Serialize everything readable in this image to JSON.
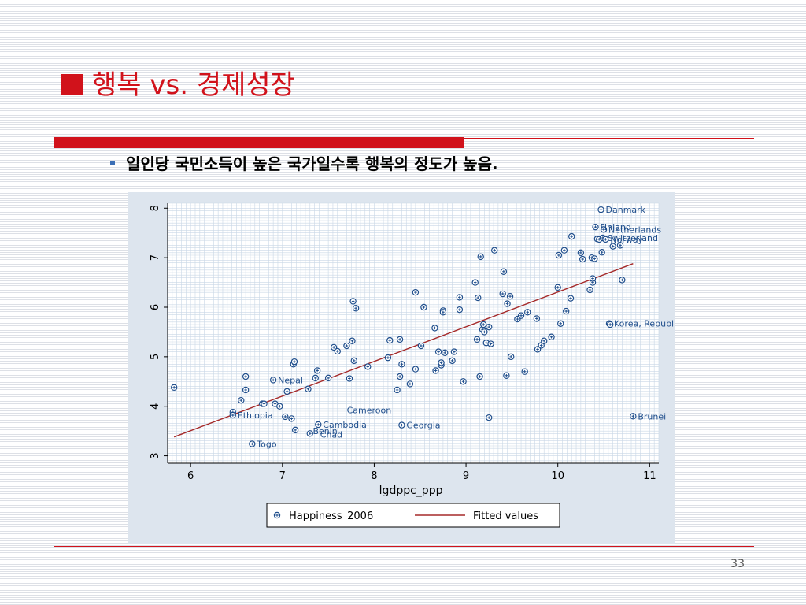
{
  "slide": {
    "title": "행복 vs. 경제성장",
    "bullet": "일인당 국민소득이 높은 국가일수록 행복의 정도가 높음.",
    "page_number": "33"
  },
  "colors": {
    "title": "#d1121b",
    "bullet_marker": "#3b6fb6",
    "marker": "#1f4e8c",
    "fitted_line": "#a52a2a",
    "panel_bg": "#dde5ee",
    "plot_bg": "#ffffff"
  },
  "chart_data": {
    "type": "scatter",
    "xlabel": "lgdppc_ppp",
    "ylabel": "",
    "xlim": [
      5.75,
      11.1
    ],
    "ylim": [
      2.85,
      8.1
    ],
    "x_ticks": [
      6,
      7,
      8,
      9,
      10,
      11
    ],
    "y_ticks": [
      3,
      4,
      5,
      6,
      7,
      8
    ],
    "grid": true,
    "legend_position": "bottom",
    "series": [
      {
        "name": "Happiness_2006",
        "kind": "scatter",
        "points": [
          [
            5.82,
            4.38
          ],
          [
            6.46,
            3.88
          ],
          [
            6.46,
            3.82
          ],
          [
            6.55,
            4.12
          ],
          [
            6.6,
            4.33
          ],
          [
            6.6,
            4.6
          ],
          [
            6.67,
            3.24
          ],
          [
            6.78,
            4.05
          ],
          [
            6.8,
            4.05
          ],
          [
            6.9,
            4.53
          ],
          [
            6.92,
            4.05
          ],
          [
            6.97,
            4.0
          ],
          [
            7.03,
            3.79
          ],
          [
            7.05,
            4.3
          ],
          [
            7.1,
            3.75
          ],
          [
            7.12,
            4.85
          ],
          [
            7.13,
            4.9
          ],
          [
            7.14,
            3.52
          ],
          [
            7.28,
            4.35
          ],
          [
            7.3,
            3.45
          ],
          [
            7.36,
            4.57
          ],
          [
            7.38,
            4.72
          ],
          [
            7.39,
            3.63
          ],
          [
            7.5,
            4.57
          ],
          [
            7.56,
            5.19
          ],
          [
            7.6,
            5.11
          ],
          [
            7.7,
            5.22
          ],
          [
            7.73,
            4.56
          ],
          [
            7.76,
            5.32
          ],
          [
            7.77,
            6.12
          ],
          [
            7.78,
            4.92
          ],
          [
            7.8,
            5.98
          ],
          [
            7.93,
            4.8
          ],
          [
            8.15,
            4.98
          ],
          [
            8.17,
            5.33
          ],
          [
            8.25,
            4.33
          ],
          [
            8.28,
            5.35
          ],
          [
            8.28,
            4.6
          ],
          [
            8.3,
            3.62
          ],
          [
            8.3,
            4.85
          ],
          [
            8.39,
            4.45
          ],
          [
            8.45,
            6.3
          ],
          [
            8.45,
            4.75
          ],
          [
            8.51,
            5.22
          ],
          [
            8.54,
            6.0
          ],
          [
            8.66,
            5.58
          ],
          [
            8.67,
            4.72
          ],
          [
            8.7,
            5.1
          ],
          [
            8.73,
            4.83
          ],
          [
            8.73,
            4.88
          ],
          [
            8.75,
            5.93
          ],
          [
            8.75,
            5.9
          ],
          [
            8.77,
            5.08
          ],
          [
            8.85,
            4.92
          ],
          [
            8.87,
            5.1
          ],
          [
            8.93,
            6.2
          ],
          [
            8.93,
            5.95
          ],
          [
            8.97,
            4.5
          ],
          [
            9.1,
            6.5
          ],
          [
            9.12,
            5.35
          ],
          [
            9.13,
            6.19
          ],
          [
            9.15,
            4.6
          ],
          [
            9.16,
            7.02
          ],
          [
            9.18,
            5.55
          ],
          [
            9.19,
            5.65
          ],
          [
            9.2,
            5.5
          ],
          [
            9.22,
            5.28
          ],
          [
            9.25,
            5.6
          ],
          [
            9.25,
            3.77
          ],
          [
            9.27,
            5.26
          ],
          [
            9.31,
            7.15
          ],
          [
            9.4,
            6.27
          ],
          [
            9.41,
            6.72
          ],
          [
            9.44,
            4.62
          ],
          [
            9.45,
            6.07
          ],
          [
            9.48,
            6.22
          ],
          [
            9.49,
            5.0
          ],
          [
            9.56,
            5.76
          ],
          [
            9.6,
            5.83
          ],
          [
            9.64,
            4.7
          ],
          [
            9.67,
            5.9
          ],
          [
            9.77,
            5.77
          ],
          [
            9.78,
            5.15
          ],
          [
            9.82,
            5.23
          ],
          [
            9.85,
            5.32
          ],
          [
            9.93,
            5.4
          ],
          [
            10.0,
            6.4
          ],
          [
            10.01,
            7.05
          ],
          [
            10.03,
            5.67
          ],
          [
            10.07,
            7.15
          ],
          [
            10.09,
            5.92
          ],
          [
            10.14,
            6.18
          ],
          [
            10.15,
            7.43
          ],
          [
            10.25,
            7.1
          ],
          [
            10.27,
            6.97
          ],
          [
            10.35,
            6.35
          ],
          [
            10.37,
            7.0
          ],
          [
            10.38,
            6.5
          ],
          [
            10.38,
            6.58
          ],
          [
            10.4,
            6.98
          ],
          [
            10.41,
            7.62
          ],
          [
            10.43,
            7.38
          ],
          [
            10.45,
            7.37
          ],
          [
            10.47,
            7.97
          ],
          [
            10.48,
            7.11
          ],
          [
            10.49,
            7.4
          ],
          [
            10.5,
            7.57
          ],
          [
            10.52,
            7.37
          ],
          [
            10.56,
            5.67
          ],
          [
            10.57,
            5.65
          ],
          [
            10.6,
            7.23
          ],
          [
            10.68,
            7.25
          ],
          [
            10.7,
            6.55
          ],
          [
            10.82,
            3.8
          ]
        ],
        "labels": [
          {
            "x": 10.47,
            "y": 7.97,
            "text": "Danmark"
          },
          {
            "x": 10.41,
            "y": 7.62,
            "text": "Finland"
          },
          {
            "x": 10.5,
            "y": 7.57,
            "text": "Netherlands"
          },
          {
            "x": 10.49,
            "y": 7.4,
            "text": "Switzerland"
          },
          {
            "x": 10.52,
            "y": 7.37,
            "text": "Norway"
          },
          {
            "x": 10.56,
            "y": 5.67,
            "text": "Korea, Republic of"
          },
          {
            "x": 10.82,
            "y": 3.8,
            "text": "Brunei"
          },
          {
            "x": 6.9,
            "y": 4.53,
            "text": "Nepal"
          },
          {
            "x": 7.65,
            "y": 3.92,
            "text": "Cameroon"
          },
          {
            "x": 6.46,
            "y": 3.82,
            "text": "Ethiopia"
          },
          {
            "x": 7.39,
            "y": 3.63,
            "text": "Cambodia"
          },
          {
            "x": 8.3,
            "y": 3.62,
            "text": "Georgia"
          },
          {
            "x": 7.28,
            "y": 3.5,
            "text": "Benin"
          },
          {
            "x": 7.36,
            "y": 3.43,
            "text": "Chad"
          },
          {
            "x": 6.67,
            "y": 3.24,
            "text": "Togo"
          }
        ]
      },
      {
        "name": "Fitted values",
        "kind": "line",
        "points": [
          [
            5.82,
            3.38
          ],
          [
            10.82,
            6.88
          ]
        ]
      }
    ]
  }
}
